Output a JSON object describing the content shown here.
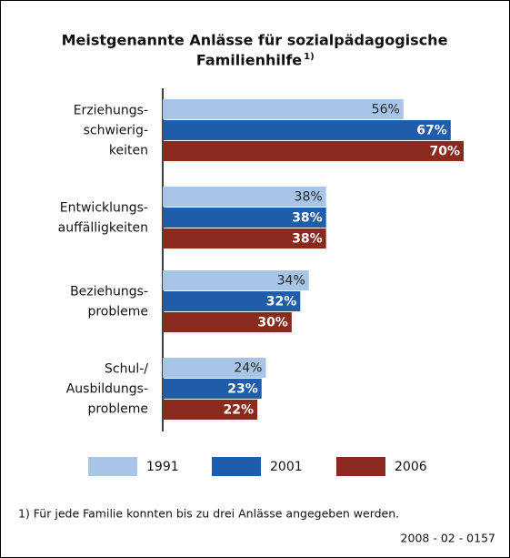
{
  "chart_data": {
    "type": "bar",
    "orientation": "horizontal",
    "title": [
      "Meistgenannte Anlässe für sozialpädagogische",
      "Familienhilfe"
    ],
    "title_note": "1)",
    "categories": [
      [
        "Erziehungs-",
        "schwierig-",
        "keiten"
      ],
      [
        "Entwicklungs-",
        "auffälligkeiten"
      ],
      [
        "Beziehungs-",
        "probleme"
      ],
      [
        "Schul-/",
        "Ausbildungs-",
        "probleme"
      ]
    ],
    "series": [
      {
        "name": "1991",
        "color": "#a7c5e6",
        "values": [
          56,
          38,
          34,
          24
        ],
        "value_labels": [
          "56%",
          "38%",
          "34%",
          "24%"
        ]
      },
      {
        "name": "2001",
        "color": "#1f5ca9",
        "values": [
          67,
          38,
          32,
          23
        ],
        "value_labels": [
          "67%",
          "38%",
          "32%",
          "23%"
        ]
      },
      {
        "name": "2006",
        "color": "#8a2a1d",
        "values": [
          70,
          38,
          30,
          22
        ],
        "value_labels": [
          "70%",
          "38%",
          "30%",
          "22%"
        ]
      }
    ],
    "xlim": [
      0,
      70
    ],
    "footnote": "1) Für jede Familie konnten bis zu drei Anlässe angegeben werden.",
    "source": "2008 - 02 - 0157"
  }
}
